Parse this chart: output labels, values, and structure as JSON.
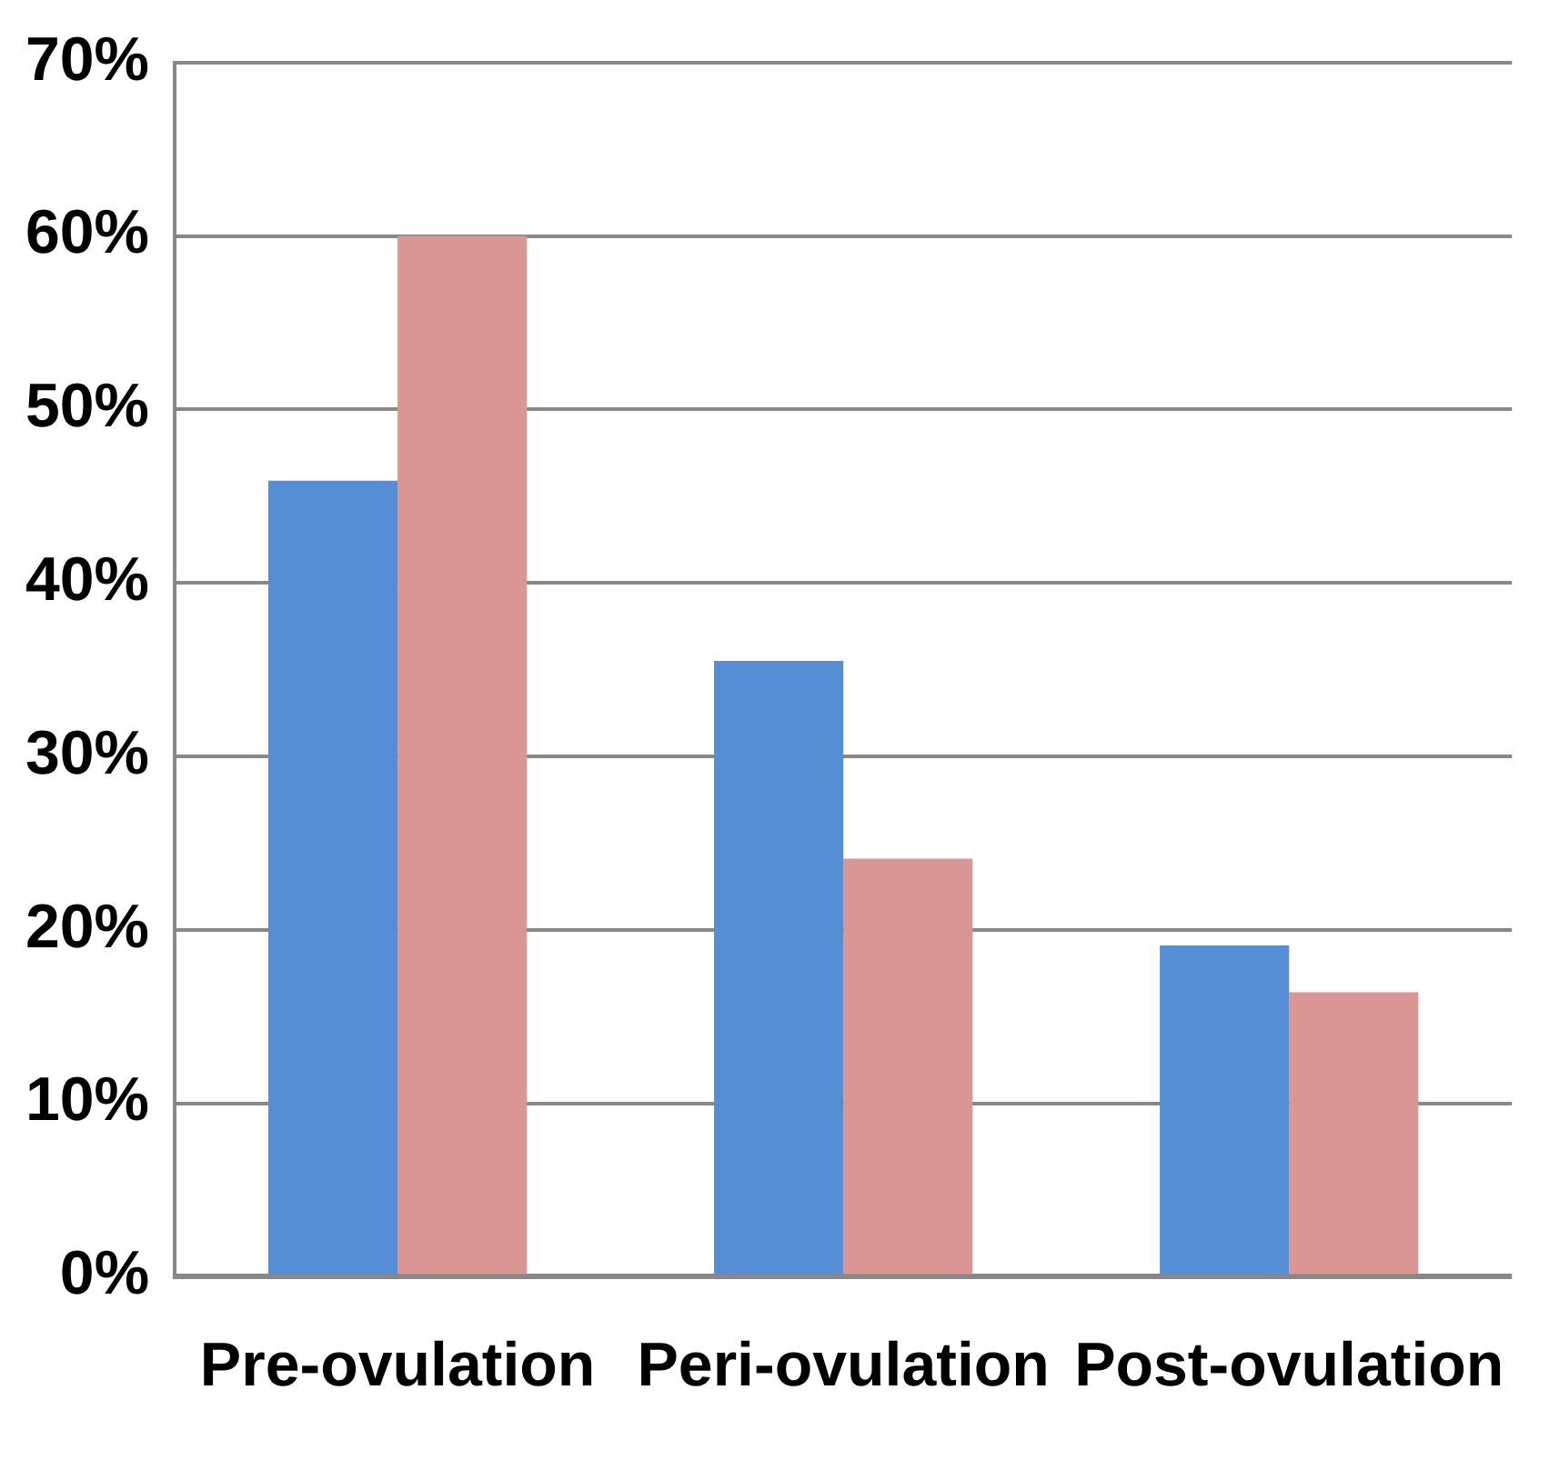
{
  "chart_data": {
    "type": "bar",
    "categories": [
      "Pre-ovulation",
      "Peri-ovulation",
      "Post-ovulation"
    ],
    "series": [
      {
        "color": "#558ed5",
        "values": [
          45.9,
          35.5,
          19.1
        ]
      },
      {
        "color": "#d99694",
        "values": [
          60,
          24.1,
          16.4
        ]
      }
    ],
    "ylim": [
      0,
      70
    ],
    "yticks": [
      {
        "value": 0,
        "label": "0%"
      },
      {
        "value": 10,
        "label": "10%"
      },
      {
        "value": 20,
        "label": "20%"
      },
      {
        "value": 30,
        "label": "30%"
      },
      {
        "value": 40,
        "label": "40%"
      },
      {
        "value": 50,
        "label": "50%"
      },
      {
        "value": 60,
        "label": "60%"
      },
      {
        "value": 70,
        "label": "70%"
      }
    ],
    "grid": "y",
    "legend": false
  }
}
